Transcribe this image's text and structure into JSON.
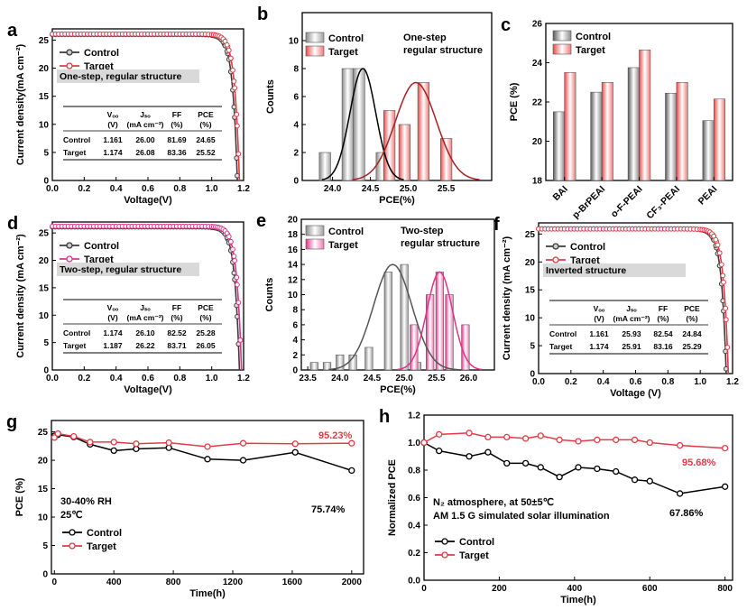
{
  "colors": {
    "control": "#3a3a3a",
    "target": "#e63946",
    "target_pink": "#e0338a",
    "dark_red": "#a81f1f",
    "black": "#000000"
  },
  "chart_data": [
    {
      "id": "a",
      "letter": "a",
      "type": "line",
      "xlabel": "Voltage(V)",
      "ylabel": "Current density(mA cm⁻²)",
      "xlim": [
        0,
        1.2
      ],
      "ylim": [
        0,
        27
      ],
      "xticks": [
        "0.0",
        "0.2",
        "0.4",
        "0.6",
        "0.8",
        "1.0",
        "1.2"
      ],
      "yticks": [
        "0",
        "5",
        "10",
        "15",
        "20",
        "25"
      ],
      "legend": [
        "Control",
        "Target"
      ],
      "annotation": "One-step, regular structure",
      "table": {
        "header": [
          "Vₒₒ (V)",
          "Jₛₒ (mA cm⁻²)",
          "FF (%)",
          "PCE (%)"
        ],
        "rows": [
          [
            "Control",
            "1.161",
            "26.00",
            "81.69",
            "24.65"
          ],
          [
            "Target",
            "1.174",
            "26.08",
            "83.36",
            "25.52"
          ]
        ]
      },
      "series": [
        {
          "name": "Control",
          "jsc": 26.0,
          "voc": 1.161
        },
        {
          "name": "Target",
          "jsc": 26.08,
          "voc": 1.174
        }
      ]
    },
    {
      "id": "b",
      "letter": "b",
      "type": "histogram",
      "xlabel": "PCE(%)",
      "ylabel": "Counts",
      "xlim": [
        23.6,
        26.1
      ],
      "ylim": [
        0,
        12
      ],
      "xticks": [
        "24.0",
        "24.5",
        "25.0",
        "25.5"
      ],
      "yticks": [
        "0",
        "2",
        "4",
        "6",
        "8",
        "10"
      ],
      "legend": [
        "Control",
        "Target"
      ],
      "annotation": "One-step regular structure",
      "bar_width": 0.15,
      "series": [
        {
          "name": "Control",
          "x": [
            23.9,
            24.2,
            24.35,
            24.65
          ],
          "values": [
            2,
            8,
            8,
            2
          ],
          "fit": {
            "mu": 24.4,
            "sigma": 0.17,
            "peak": 8
          }
        },
        {
          "name": "Target",
          "x": [
            24.75,
            24.95,
            25.2,
            25.5
          ],
          "values": [
            5,
            4,
            7,
            3
          ],
          "fit": {
            "mu": 25.1,
            "sigma": 0.27,
            "peak": 7
          }
        }
      ]
    },
    {
      "id": "c",
      "letter": "c",
      "type": "bar",
      "xlabel": "",
      "ylabel": "PCE (%)",
      "ylim": [
        18,
        26
      ],
      "yticks": [
        "18",
        "20",
        "22",
        "24",
        "26"
      ],
      "categories": [
        "BAI",
        "p-BrPEAI",
        "o-F-PEAI",
        "CF₃-PEAI",
        "PEAI"
      ],
      "legend": [
        "Control",
        "Target"
      ],
      "series": [
        {
          "name": "Control",
          "values": [
            21.5,
            22.5,
            23.75,
            22.45,
            21.05
          ]
        },
        {
          "name": "Target",
          "values": [
            23.5,
            23.0,
            24.65,
            23.0,
            22.15
          ]
        }
      ]
    },
    {
      "id": "d",
      "letter": "d",
      "type": "line",
      "xlabel": "Voltage(V)",
      "ylabel": "Current density (mA cm⁻²)",
      "xlim": [
        0,
        1.2
      ],
      "ylim": [
        0,
        27
      ],
      "xticks": [
        "0.0",
        "0.2",
        "0.4",
        "0.6",
        "0.8",
        "1.0",
        "1.2"
      ],
      "yticks": [
        "0",
        "5",
        "10",
        "15",
        "20",
        "25"
      ],
      "legend": [
        "Control",
        "Target"
      ],
      "annotation": "Two-step, regular structure",
      "table": {
        "header": [
          "Vₒₒ (V)",
          "Jₛₒ (mA cm⁻²)",
          "FF (%)",
          "PCE (%)"
        ],
        "rows": [
          [
            "Control",
            "1.174",
            "26.10",
            "82.52",
            "25.28"
          ],
          [
            "Target",
            "1.187",
            "26.22",
            "83.71",
            "26.05"
          ]
        ]
      },
      "series": [
        {
          "name": "Control",
          "jsc": 26.1,
          "voc": 1.174
        },
        {
          "name": "Target",
          "jsc": 26.22,
          "voc": 1.187
        }
      ]
    },
    {
      "id": "e",
      "letter": "e",
      "type": "histogram",
      "xlabel": "PCE(%)",
      "ylabel": "Counts",
      "xlim": [
        23.4,
        26.4
      ],
      "ylim": [
        0,
        20
      ],
      "xticks": [
        "23.5",
        "24.0",
        "24.5",
        "25.0",
        "25.5",
        "26.0"
      ],
      "yticks": [
        "0",
        "2",
        "4",
        "6",
        "8",
        "10",
        "12",
        "14",
        "16",
        "18",
        "20"
      ],
      "legend": [
        "Control",
        "Target"
      ],
      "annotation": "Two-step regular structure",
      "bar_width": 0.12,
      "series": [
        {
          "name": "Control",
          "x": [
            23.6,
            23.8,
            24.0,
            24.2,
            24.45,
            24.75,
            25.0,
            25.2
          ],
          "values": [
            1,
            1,
            2,
            2,
            3,
            13,
            14,
            1
          ],
          "fit": {
            "mu": 24.82,
            "sigma": 0.3,
            "peak": 14
          }
        },
        {
          "name": "Target",
          "x": [
            25.15,
            25.4,
            25.55,
            25.7,
            25.95
          ],
          "values": [
            6,
            10,
            13,
            10,
            6
          ],
          "fit": {
            "mu": 25.55,
            "sigma": 0.2,
            "peak": 13
          }
        }
      ]
    },
    {
      "id": "f",
      "letter": "f",
      "type": "line",
      "xlabel": "Voltage (V)",
      "ylabel": "Current density (mA cm⁻²)",
      "xlim": [
        0,
        1.2
      ],
      "ylim": [
        0,
        27
      ],
      "xticks": [
        "0.0",
        "0.2",
        "0.4",
        "0.6",
        "0.8",
        "1.0",
        "1.2"
      ],
      "yticks": [
        "0",
        "5",
        "10",
        "15",
        "20",
        "25"
      ],
      "legend": [
        "Control",
        "Target"
      ],
      "annotation": "Inverted structure",
      "table": {
        "header": [
          "Vₒₒ (V)",
          "Jₛₒ (mA cm⁻²)",
          "FF (%)",
          "PCE (%)"
        ],
        "rows": [
          [
            "Control",
            "1.161",
            "25.93",
            "82.54",
            "24.84"
          ],
          [
            "Target",
            "1.174",
            "25.91",
            "83.16",
            "25.29"
          ]
        ]
      },
      "series": [
        {
          "name": "Control",
          "jsc": 25.93,
          "voc": 1.161
        },
        {
          "name": "Target",
          "jsc": 25.91,
          "voc": 1.174
        }
      ]
    },
    {
      "id": "g",
      "letter": "g",
      "type": "line",
      "xlabel": "Time(h)",
      "ylabel": "PCE (%)",
      "xlim": [
        -20,
        2080
      ],
      "ylim": [
        0,
        27
      ],
      "xticks": [
        "0",
        "400",
        "800",
        "1200",
        "1600",
        "2000"
      ],
      "yticks": [
        "0",
        "5",
        "10",
        "15",
        "20",
        "25"
      ],
      "legend": [
        "Control",
        "Target"
      ],
      "annotations": [
        "30-40% RH",
        "25℃"
      ],
      "end_labels": {
        "Control": "75.74%",
        "Target": "95.23%"
      },
      "series": [
        {
          "name": "Control",
          "x": [
            0,
            24,
            130,
            240,
            400,
            550,
            770,
            1030,
            1270,
            1620,
            2000
          ],
          "y": [
            24.3,
            24.5,
            24.1,
            22.8,
            21.7,
            22.0,
            22.2,
            20.2,
            20.0,
            21.4,
            18.2
          ]
        },
        {
          "name": "Target",
          "x": [
            0,
            24,
            130,
            240,
            400,
            550,
            770,
            1030,
            1270,
            1620,
            2000
          ],
          "y": [
            24.0,
            24.7,
            24.2,
            23.2,
            23.2,
            22.9,
            23.1,
            22.4,
            23.0,
            22.9,
            23.0
          ]
        }
      ]
    },
    {
      "id": "h",
      "letter": "h",
      "type": "line",
      "xlabel": "Time(h)",
      "ylabel": "Normalized PCE",
      "xlim": [
        0,
        820
      ],
      "ylim": [
        0,
        1.2
      ],
      "xticks": [
        "0",
        "200",
        "400",
        "600",
        "800"
      ],
      "yticks": [
        "0.0",
        "0.2",
        "0.4",
        "0.6",
        "0.8",
        "1.0",
        "1.2"
      ],
      "legend": [
        "Control",
        "Target"
      ],
      "annotations": [
        "N₂ atmosphere, at 50±5℃",
        "AM 1.5 G simulated solar illumination"
      ],
      "end_labels": {
        "Control": "67.86%",
        "Target": "95.68%"
      },
      "series": [
        {
          "name": "Control",
          "x": [
            0,
            40,
            120,
            170,
            220,
            270,
            310,
            360,
            410,
            460,
            510,
            560,
            600,
            680,
            800
          ],
          "y": [
            1.0,
            0.94,
            0.9,
            0.93,
            0.85,
            0.85,
            0.82,
            0.75,
            0.82,
            0.81,
            0.79,
            0.73,
            0.72,
            0.63,
            0.68
          ]
        },
        {
          "name": "Target",
          "x": [
            0,
            40,
            120,
            170,
            220,
            270,
            310,
            360,
            410,
            460,
            510,
            560,
            600,
            680,
            800
          ],
          "y": [
            1.0,
            1.06,
            1.07,
            1.04,
            1.04,
            1.03,
            1.05,
            1.02,
            1.01,
            1.02,
            1.02,
            1.02,
            1.0,
            0.98,
            0.96
          ]
        }
      ]
    }
  ]
}
